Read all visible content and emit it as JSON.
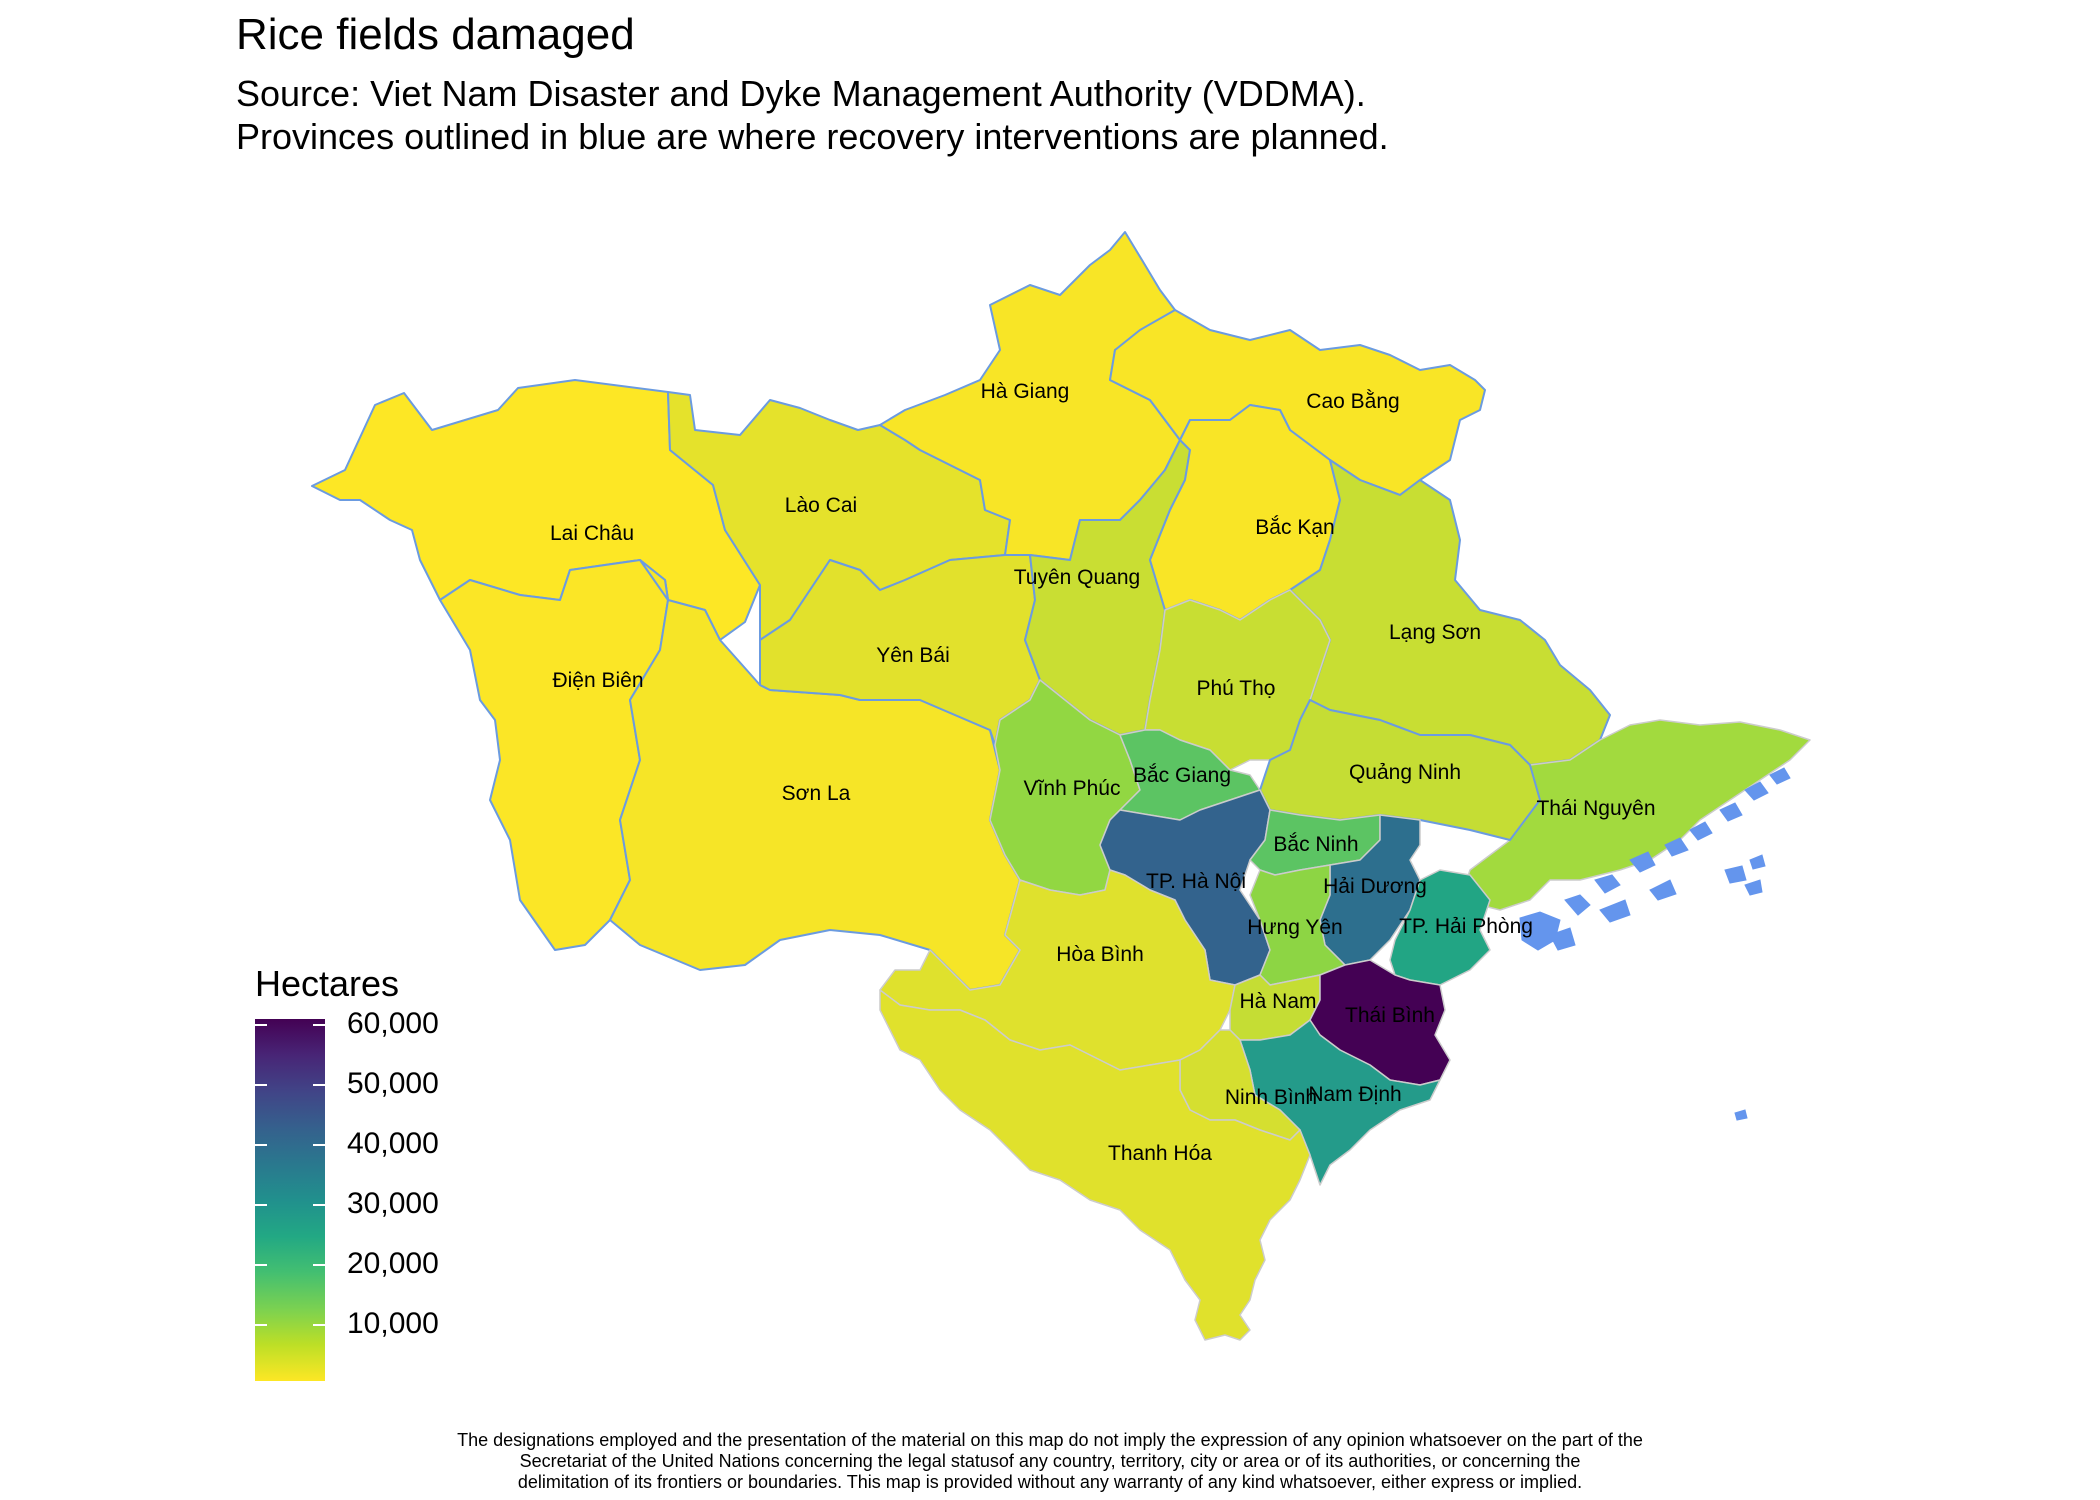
{
  "title": "Rice fields damaged",
  "subtitle_line1": "Source: Viet Nam Disaster and Dyke Management Authority (VDDMA).",
  "subtitle_line2": "Provinces outlined in blue are where recovery interventions are planned.",
  "legend": {
    "title": "Hectares",
    "labels": [
      "60,000",
      "50,000",
      "40,000",
      "30,000",
      "20,000",
      "10,000"
    ],
    "scale": "viridis (reversed: yellow = low, purple = high)"
  },
  "colors": {
    "planned_outline": "#6b9be0",
    "other_outline": "#cccccc",
    "sea_islands": "#6495ed"
  },
  "provinces": [
    {
      "name": "Lai Châu",
      "color": "#fde725",
      "planned": true
    },
    {
      "name": "Điện Biên",
      "color": "#fbe626",
      "planned": true
    },
    {
      "name": "Sơn La",
      "color": "#f6e527",
      "planned": true
    },
    {
      "name": "Lào Cai",
      "color": "#e5e22b",
      "planned": true
    },
    {
      "name": "Hà Giang",
      "color": "#f8e526",
      "planned": true
    },
    {
      "name": "Cao Bằng",
      "color": "#f9e526",
      "planned": true
    },
    {
      "name": "Yên Bái",
      "color": "#e2e12c",
      "planned": true
    },
    {
      "name": "Tuyên Quang",
      "color": "#c9de33",
      "planned": true
    },
    {
      "name": "Bắc Kạn",
      "color": "#f9e526",
      "planned": true
    },
    {
      "name": "Lạng Sơn",
      "color": "#c8de33",
      "planned": true
    },
    {
      "name": "Thái Nguyên",
      "color": "#a2da3e",
      "planned": false
    },
    {
      "name": "Phú Thọ",
      "color": "#c8de33",
      "planned": false
    },
    {
      "name": "Vĩnh Phúc",
      "color": "#92d742",
      "planned": false
    },
    {
      "name": "Bắc Giang",
      "color": "#5cc463",
      "planned": false
    },
    {
      "name": "Quảng Ninh",
      "color": "#c5dd34",
      "planned": true
    },
    {
      "name": "TP. Hà Nội",
      "color": "#33638d",
      "planned": false
    },
    {
      "name": "Bắc Ninh",
      "color": "#5cc463",
      "planned": false
    },
    {
      "name": "Hải Dương",
      "color": "#2d6f8e",
      "planned": false
    },
    {
      "name": "Hưng Yên",
      "color": "#8dd544",
      "planned": false
    },
    {
      "name": "TP. Hải Phòng",
      "color": "#22a584",
      "planned": false
    },
    {
      "name": "Hòa Bình",
      "color": "#dfe12d",
      "planned": false
    },
    {
      "name": "Hà Nam",
      "color": "#c5dd34",
      "planned": false
    },
    {
      "name": "Thái Bình",
      "color": "#440154",
      "planned": false
    },
    {
      "name": "Nam Định",
      "color": "#249b8a",
      "planned": false
    },
    {
      "name": "Ninh Bình",
      "color": "#d5df30",
      "planned": false
    },
    {
      "name": "Thanh Hóa",
      "color": "#e0e12c",
      "planned": false
    }
  ],
  "disclaimer": [
    "The designations employed and the presentation of the material on this map do not imply the expression of any opinion whatsoever on the part of the",
    "Secretariat of the United Nations concerning the legal statusof any country, territory, city or area or of its authorities, or concerning the",
    "delimitation of its frontiers or boundaries. This map is provided without any warranty of any kind whatsoever, either express or implied."
  ]
}
